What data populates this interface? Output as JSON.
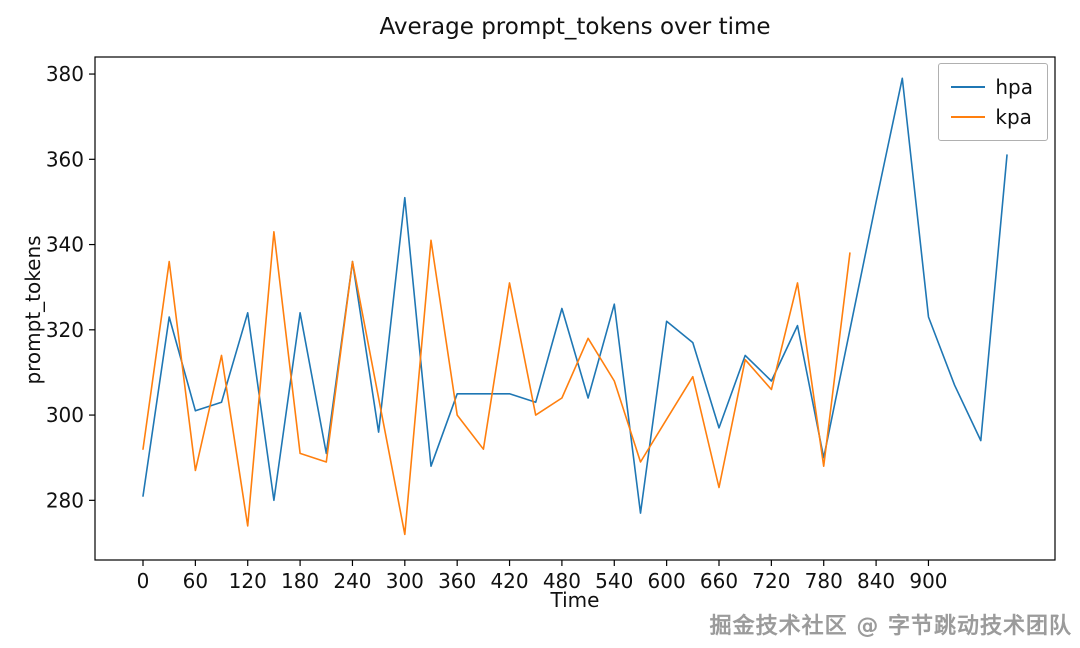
{
  "watermark": "掘金技术社区 @ 字节跳动技术团队",
  "chart_data": {
    "type": "line",
    "title": "Average prompt_tokens over time",
    "xlabel": "Time",
    "ylabel": "prompt_tokens",
    "xlim": [
      -55,
      1045
    ],
    "ylim": [
      266,
      384
    ],
    "xticks": [
      0,
      60,
      120,
      180,
      240,
      300,
      360,
      420,
      480,
      540,
      600,
      660,
      720,
      780,
      840,
      900
    ],
    "yticks": [
      280,
      300,
      320,
      340,
      360,
      380
    ],
    "grid": false,
    "legend_position": "upper right",
    "series": [
      {
        "name": "hpa",
        "color": "#1f77b4",
        "x": [
          0,
          30,
          60,
          90,
          120,
          150,
          180,
          210,
          240,
          270,
          300,
          330,
          360,
          390,
          420,
          450,
          480,
          510,
          540,
          570,
          600,
          630,
          660,
          690,
          720,
          750,
          780,
          810,
          840,
          870,
          900,
          930,
          960,
          990
        ],
        "values": [
          281,
          323,
          301,
          303,
          324,
          280,
          324,
          291,
          336,
          296,
          351,
          288,
          305,
          305,
          305,
          303,
          325,
          304,
          326,
          277,
          322,
          317,
          297,
          314,
          308,
          321,
          290,
          320,
          350,
          379,
          323,
          307,
          294,
          361
        ]
      },
      {
        "name": "kpa",
        "color": "#ff7f0e",
        "x": [
          0,
          30,
          60,
          90,
          120,
          150,
          180,
          210,
          240,
          270,
          300,
          330,
          360,
          390,
          420,
          450,
          480,
          510,
          540,
          570,
          600,
          630,
          660,
          690,
          720,
          750,
          780,
          810
        ],
        "values": [
          292,
          336,
          287,
          314,
          274,
          343,
          291,
          289,
          336,
          304,
          272,
          341,
          300,
          292,
          331,
          300,
          304,
          318,
          308,
          289,
          299,
          309,
          283,
          313,
          306,
          331,
          288,
          338
        ]
      }
    ]
  }
}
